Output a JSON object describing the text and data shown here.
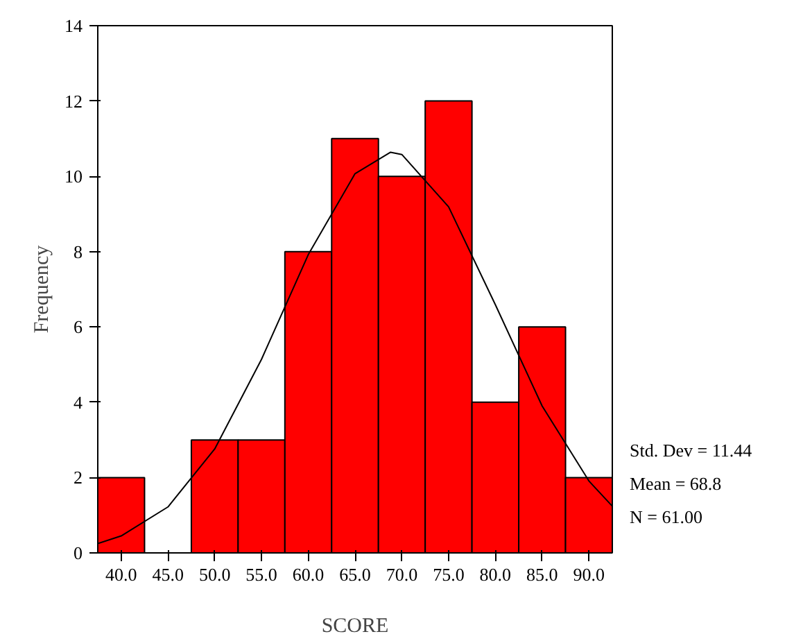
{
  "chart_data": {
    "type": "histogram",
    "xlabel": "SCORE",
    "ylabel": "Frequency",
    "bins": [
      37.5,
      42.5,
      47.5,
      52.5,
      57.5,
      62.5,
      67.5,
      72.5,
      77.5,
      82.5,
      87.5,
      92.5
    ],
    "values": [
      2,
      0,
      3,
      3,
      8,
      11,
      10,
      12,
      4,
      6,
      2
    ],
    "color": "#ff0000",
    "series": [
      {
        "type": "line",
        "color": "#000000",
        "x": [
          37.5,
          40,
          45,
          50,
          55,
          60,
          65,
          68.8,
          70,
          75,
          80,
          85,
          90,
          92.5
        ],
        "values": [
          0.25,
          0.45,
          1.22,
          2.76,
          5.14,
          7.92,
          10.07,
          10.64,
          10.58,
          9.19,
          6.59,
          3.9,
          1.91,
          1.24
        ]
      }
    ],
    "xlim": [
      37.5,
      92.5
    ],
    "xticks": [
      {
        "value": 40,
        "label": "40.0"
      },
      {
        "value": 45,
        "label": "45.0"
      },
      {
        "value": 50,
        "label": "50.0"
      },
      {
        "value": 55,
        "label": "55.0"
      },
      {
        "value": 60,
        "label": "60.0"
      },
      {
        "value": 65,
        "label": "65.0"
      },
      {
        "value": 70,
        "label": "70.0"
      },
      {
        "value": 75,
        "label": "75.0"
      },
      {
        "value": 80,
        "label": "80.0"
      },
      {
        "value": 85,
        "label": "85.0"
      },
      {
        "value": 90,
        "label": "90.0"
      }
    ],
    "ylim": [
      0,
      14
    ],
    "yticks": [
      0,
      2,
      4,
      6,
      8,
      10,
      12,
      14
    ],
    "grid": false,
    "annotations": [
      "Std. Dev = 11.44",
      "Mean = 68.8",
      "N = 61.00"
    ]
  }
}
